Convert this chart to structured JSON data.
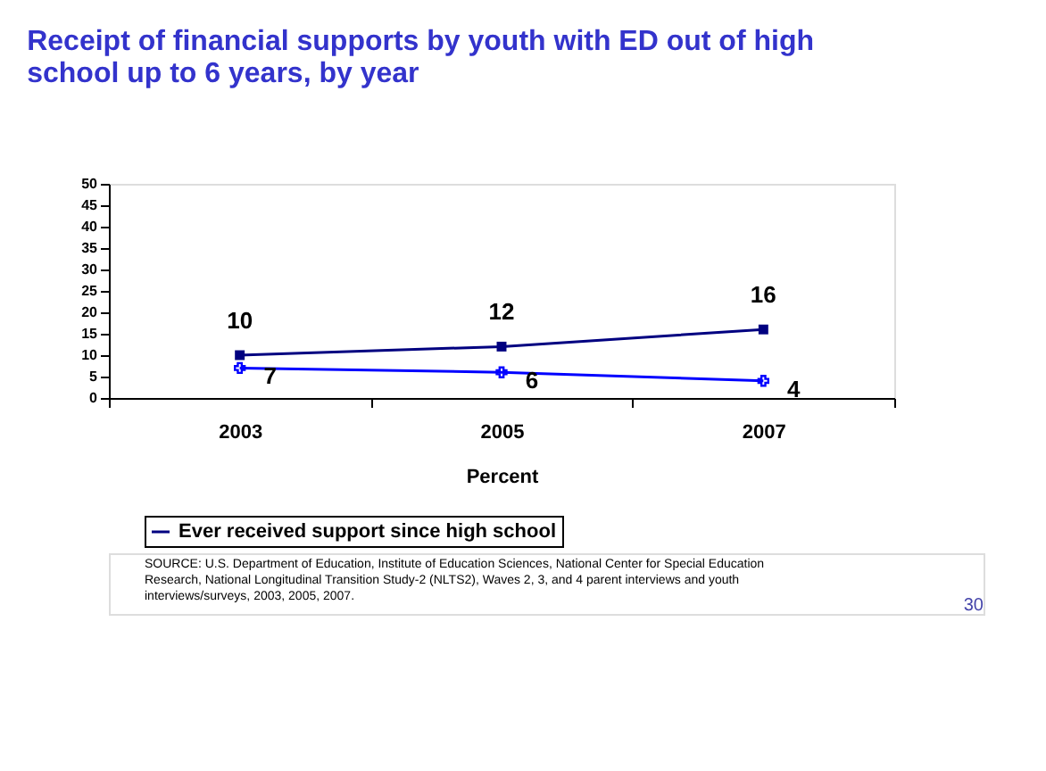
{
  "chart_data": {
    "type": "line",
    "title": "Receipt of financial supports by youth with ED out of high school up to 6 years, by year",
    "categories": [
      "2003",
      "2005",
      "2007"
    ],
    "series": [
      {
        "name": "Ever received support since high school",
        "color": "#000080",
        "marker": "square",
        "values": [
          10,
          12,
          16
        ]
      },
      {
        "color": "#0000ff",
        "marker": "cross",
        "values": [
          7,
          6,
          4
        ]
      }
    ],
    "xlabel": "Percent",
    "ylim": [
      0,
      50
    ],
    "yticks": [
      0,
      5,
      10,
      15,
      20,
      25,
      30,
      35,
      40,
      45,
      50
    ],
    "data_labels": true,
    "grid": false,
    "legend": "bottom",
    "line_style": "solid",
    "annotations": [
      "SOURCE: U.S. Department of Education, Institute of Education Sciences, National Center for Special Education Research, National Longitudinal Transition Study-2 (NLTS2), Waves 2, 3, and 4 parent interviews and youth interviews/surveys, 2003, 2005, 2007.",
      "30"
    ]
  }
}
